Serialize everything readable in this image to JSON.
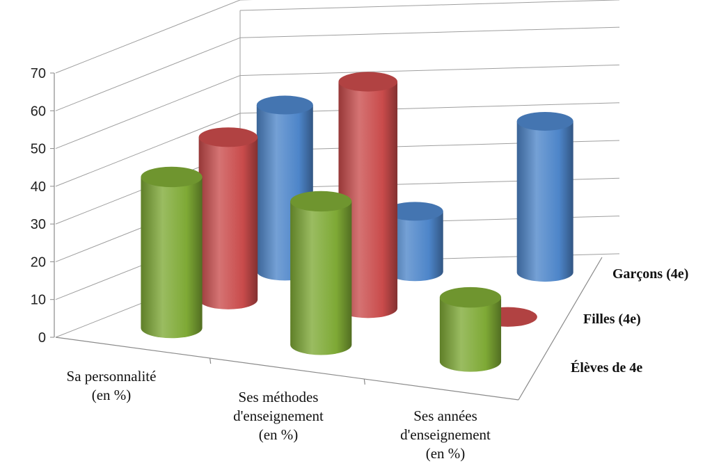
{
  "chart_data": {
    "type": "bar",
    "variant": "3d-cylinder",
    "categories": [
      [
        "Sa personnalité",
        "(en %)"
      ],
      [
        "Ses méthodes",
        "d'enseignement",
        "(en %)"
      ],
      [
        "Ses années",
        "d'enseignement",
        "(en %)"
      ]
    ],
    "series": [
      {
        "name": "Élèves de 4e",
        "color": "#7ea935",
        "values": [
          40,
          38,
          17
        ]
      },
      {
        "name": "Filles (4e)",
        "color": "#c94b4b",
        "values": [
          43,
          60,
          0
        ]
      },
      {
        "name": "Garçons (4e)",
        "color": "#4d85c9",
        "values": [
          44,
          16,
          40
        ]
      }
    ],
    "ylim": [
      0,
      70
    ],
    "yticks": [
      0,
      10,
      20,
      30,
      40,
      50,
      60,
      70
    ],
    "grid": true,
    "title": "",
    "xlabel": "",
    "ylabel": ""
  }
}
